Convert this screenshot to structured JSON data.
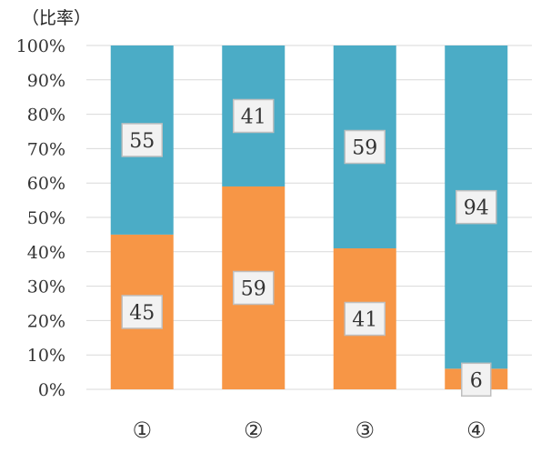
{
  "chart_data": {
    "type": "bar",
    "stacked": "percent",
    "ylabel": "（比率）",
    "ylim": [
      0,
      100
    ],
    "ytick_labels": [
      "0%",
      "10%",
      "20%",
      "30%",
      "40%",
      "50%",
      "60%",
      "70%",
      "80%",
      "90%",
      "100%"
    ],
    "categories": [
      "①",
      "②",
      "③",
      "④"
    ],
    "series": [
      {
        "values": [
          45,
          59,
          41,
          6
        ],
        "color": "#F79646"
      },
      {
        "values": [
          55,
          41,
          59,
          94
        ],
        "color": "#4BACC6"
      }
    ],
    "grid": true,
    "legend": "none"
  }
}
